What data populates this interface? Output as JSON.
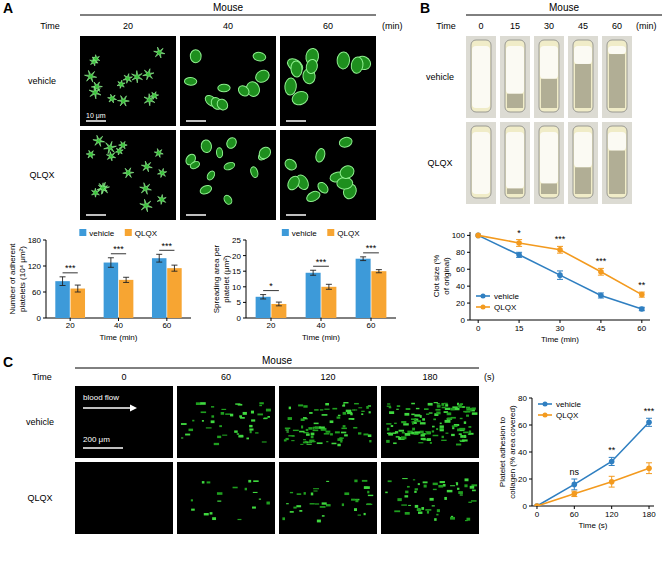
{
  "figure": {
    "panels": [
      {
        "letter": "A",
        "header": "Mouse",
        "time_label": "Time",
        "times": [
          "20",
          "40",
          "60"
        ],
        "time_unit": "(min)",
        "rows": [
          "vehicle",
          "QLQX"
        ],
        "scale_bar": "10 μm"
      },
      {
        "letter": "B",
        "header": "Mouse",
        "time_label": "Time",
        "times": [
          "0",
          "15",
          "30",
          "45",
          "60"
        ],
        "time_unit": "(min)",
        "rows": [
          "vehicle",
          "QLQX"
        ]
      },
      {
        "letter": "C",
        "header": "Mouse",
        "time_label": "Time",
        "times": [
          "0",
          "60",
          "120",
          "180"
        ],
        "time_unit": "(s)",
        "rows": [
          "vehicle",
          "QLQX"
        ],
        "scale_bar": "200 μm",
        "flow_label": "blood flow"
      }
    ]
  },
  "chart_data": [
    {
      "type": "bar",
      "categories": [
        "20",
        "40",
        "60"
      ],
      "x_label": "Time (min)",
      "y_label": "Number of adherent platelets (10⁴ μm²)",
      "ylim": [
        0,
        180
      ],
      "yticks": [
        0,
        60,
        120,
        180
      ],
      "legend": "top",
      "series": [
        {
          "name": "vehicle",
          "color": "#3d9ad9",
          "values": [
            85,
            128,
            138
          ],
          "errors": [
            10,
            11,
            9
          ]
        },
        {
          "name": "QLQX",
          "color": "#f7a532",
          "values": [
            68,
            88,
            115
          ],
          "errors": [
            8,
            6,
            7
          ]
        }
      ],
      "significance": [
        "***",
        "***",
        "***"
      ]
    },
    {
      "type": "bar",
      "categories": [
        "20",
        "40",
        "60"
      ],
      "x_label": "Time (min)",
      "y_label": "Spreading area per platelet (μm²)",
      "ylim": [
        0,
        25
      ],
      "yticks": [
        0,
        5,
        10,
        15,
        20,
        25
      ],
      "legend": "top",
      "series": [
        {
          "name": "vehicle",
          "color": "#3d9ad9",
          "values": [
            6.8,
            14.5,
            19
          ],
          "errors": [
            0.7,
            0.8,
            0.6
          ]
        },
        {
          "name": "QLQX",
          "color": "#f7a532",
          "values": [
            4.5,
            10,
            15
          ],
          "errors": [
            0.6,
            0.8,
            0.5
          ]
        }
      ],
      "significance": [
        "*",
        "***",
        "***"
      ]
    },
    {
      "type": "line",
      "x": [
        0,
        15,
        30,
        45,
        60
      ],
      "xlim": [
        -3,
        63
      ],
      "xticks": [
        0,
        15,
        30,
        45,
        60
      ],
      "x_label": "Time (min)",
      "y_label": "Clot size (% of original)",
      "ylim": [
        0,
        104
      ],
      "yticks": [
        0,
        20,
        40,
        60,
        80,
        100
      ],
      "legend": "bottom left",
      "marker": "circle",
      "series": [
        {
          "name": "vehicle",
          "color": "#2f7fc1",
          "values": [
            100,
            77,
            53,
            29,
            13
          ],
          "errors": [
            0,
            3,
            5,
            3,
            2
          ]
        },
        {
          "name": "QLQX",
          "color": "#f39a1e",
          "values": [
            100,
            91,
            83,
            57,
            30
          ],
          "errors": [
            0,
            4,
            4,
            4,
            3
          ]
        }
      ],
      "significance": [
        null,
        "*",
        "***",
        "***",
        "**"
      ]
    },
    {
      "type": "line",
      "x": [
        0,
        60,
        120,
        180
      ],
      "xlim": [
        -8,
        188
      ],
      "xticks": [
        0,
        60,
        120,
        180
      ],
      "x_label": "Time (s)",
      "y_label": "Platelet adhesion to collagen (% area covered)",
      "ylim": [
        0,
        80
      ],
      "yticks": [
        0,
        20,
        40,
        60,
        80
      ],
      "legend": "top left",
      "marker": "circle",
      "series": [
        {
          "name": "vehicle",
          "color": "#2f7fc1",
          "values": [
            0,
            16,
            33,
            62
          ],
          "errors": [
            0,
            4,
            3,
            3
          ]
        },
        {
          "name": "QLQX",
          "color": "#f39a1e",
          "values": [
            0,
            9,
            18,
            28
          ],
          "errors": [
            0,
            2,
            4,
            4
          ]
        }
      ],
      "significance": [
        null,
        "ns",
        "**",
        "***"
      ]
    }
  ]
}
